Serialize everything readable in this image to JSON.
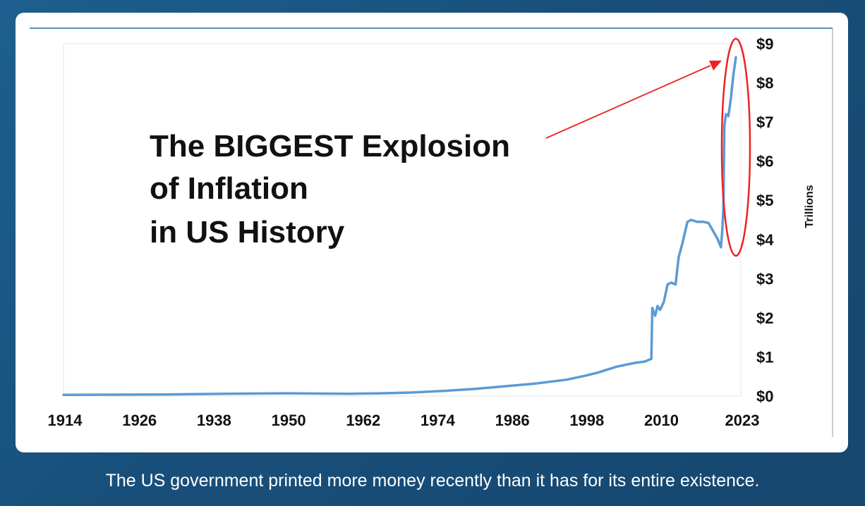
{
  "chart_data": {
    "type": "line",
    "title": "",
    "xlabel": "",
    "ylabel": "Trillions",
    "x_ticks": [
      "1914",
      "1926",
      "1938",
      "1950",
      "1962",
      "1974",
      "1986",
      "1998",
      "2010",
      "2023"
    ],
    "y_ticks": [
      "$0",
      "$1",
      "$2",
      "$3",
      "$4",
      "$5",
      "$6",
      "$7",
      "$8",
      "$9"
    ],
    "xlim": [
      1914,
      2023
    ],
    "ylim": [
      0,
      9
    ],
    "grid": false,
    "series": [
      {
        "color": "#5b9bd5",
        "x": [
          1914,
          1930,
          1940,
          1950,
          1960,
          1965,
          1970,
          1975,
          1980,
          1985,
          1990,
          1995,
          1998,
          2000,
          2003,
          2006,
          2007.5,
          2008.6,
          2008.75,
          2009.2,
          2009.6,
          2010,
          2010.6,
          2011.2,
          2011.8,
          2012.5,
          2013,
          2013.6,
          2014.4,
          2015,
          2016,
          2017,
          2017.8,
          2018.6,
          2019.3,
          2019.8,
          2020.0,
          2020.2,
          2020.35,
          2020.6,
          2021,
          2021.4,
          2021.8,
          2022.2
        ],
        "y": [
          0.03,
          0.04,
          0.06,
          0.07,
          0.06,
          0.07,
          0.09,
          0.13,
          0.18,
          0.25,
          0.32,
          0.42,
          0.52,
          0.6,
          0.75,
          0.85,
          0.88,
          0.95,
          2.25,
          2.05,
          2.3,
          2.2,
          2.4,
          2.85,
          2.9,
          2.85,
          3.55,
          3.9,
          4.45,
          4.5,
          4.45,
          4.45,
          4.42,
          4.2,
          4.0,
          3.8,
          4.2,
          4.8,
          6.9,
          7.2,
          7.15,
          7.6,
          8.2,
          8.65
        ]
      }
    ],
    "annotations": [
      {
        "text_lines": [
          "The BIGGEST Explosion",
          "of Inflation",
          "in US History"
        ],
        "pointer_color": "#ee2222"
      }
    ]
  },
  "caption": "The US government printed more money recently than it has for its entire existence."
}
